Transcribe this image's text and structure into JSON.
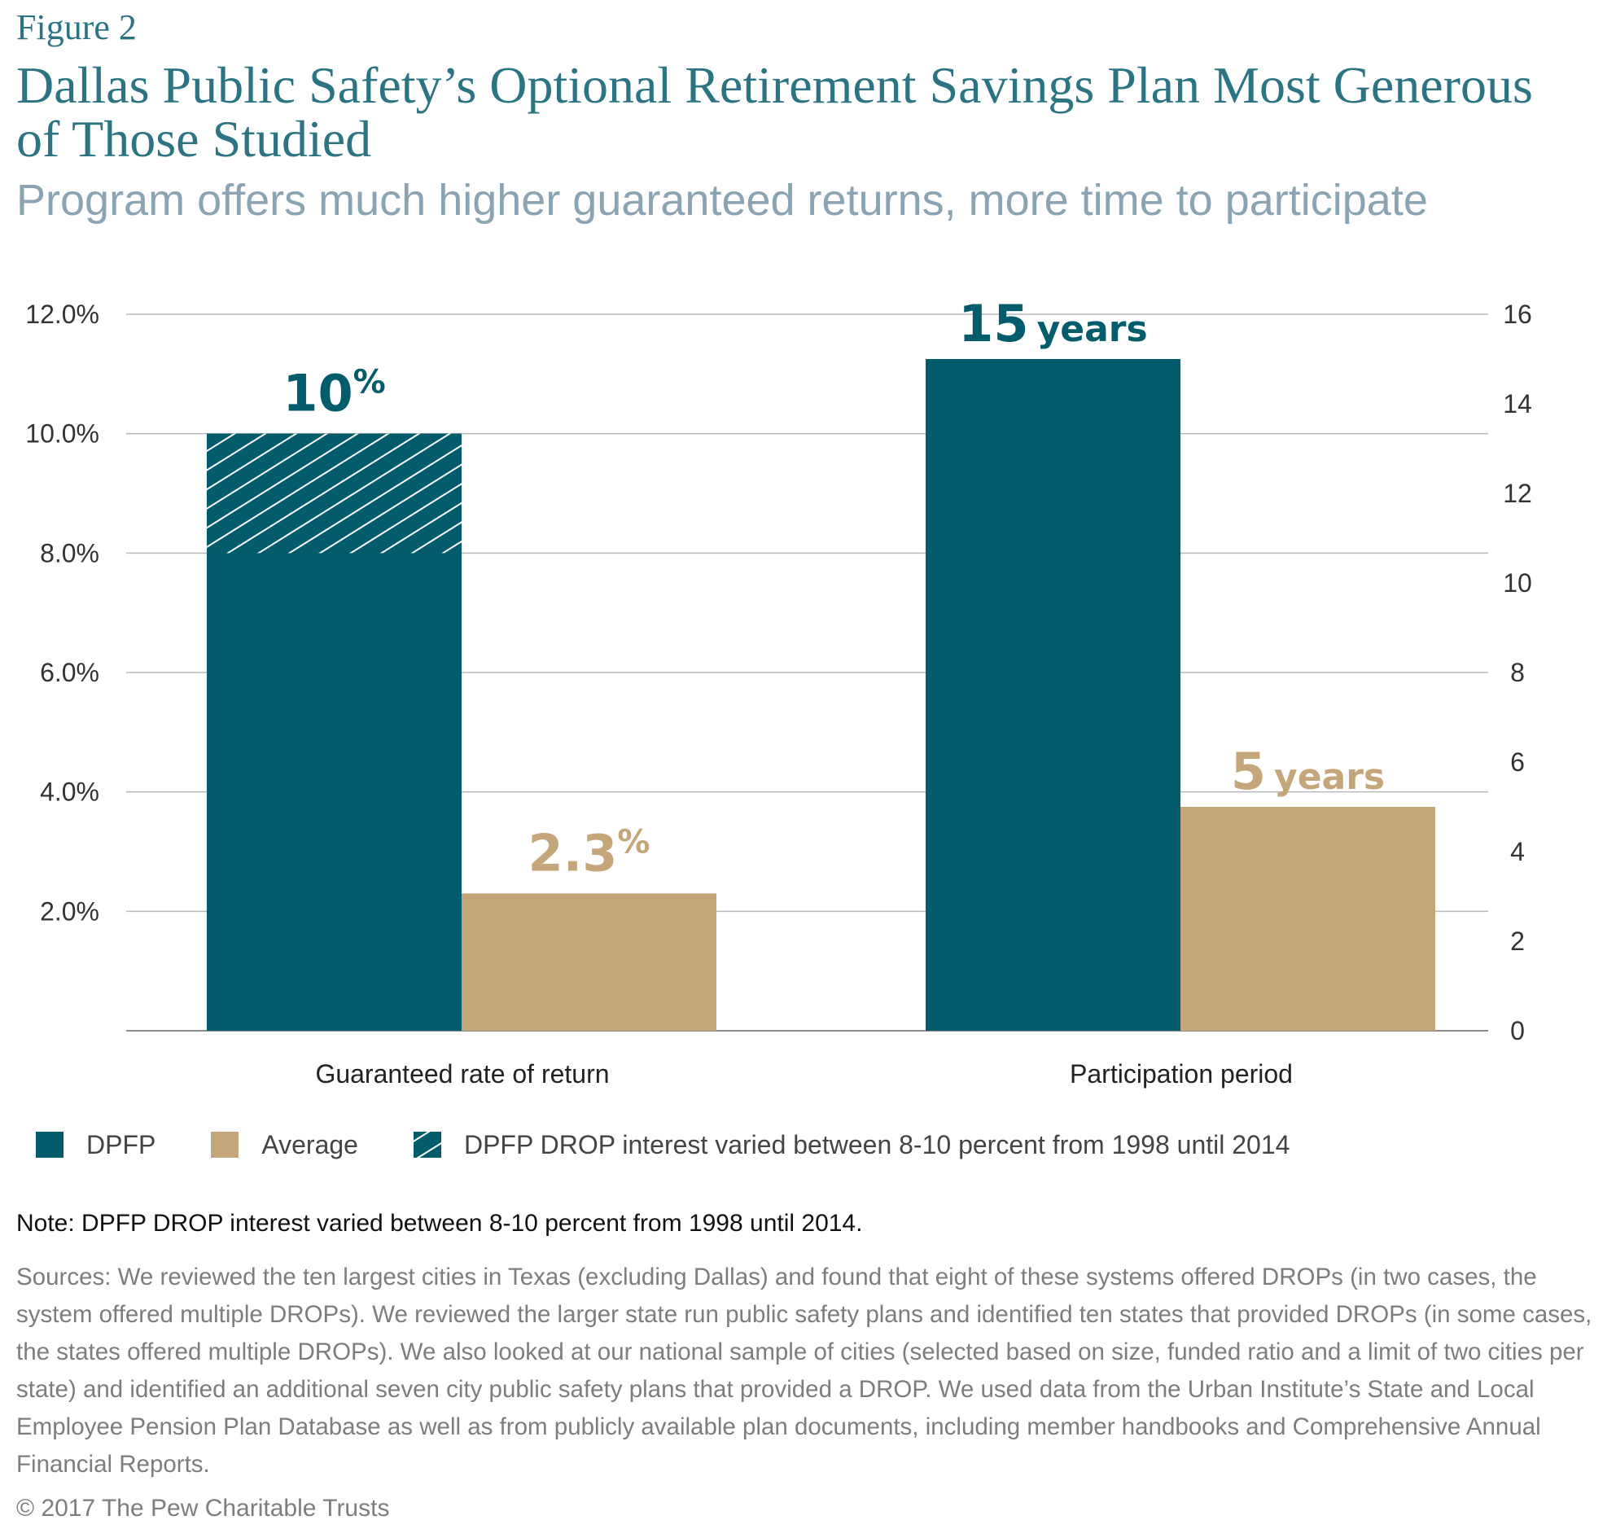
{
  "figure_label": "Figure 2",
  "title": "Dallas Public Safety’s Optional Retirement Savings Plan Most Generous of Those Studied",
  "subtitle": "Program offers much higher guaranteed returns, more time to participate",
  "colors": {
    "dpfp": "#035c6c",
    "average": "#c5a57a",
    "grid": "#b8b8b8",
    "axis": "#8c8c8c"
  },
  "chart_data": {
    "type": "bar",
    "categories": [
      "Guaranteed rate of return",
      "Participation period"
    ],
    "series": [
      {
        "name": "DPFP",
        "values": [
          10,
          15
        ],
        "color_key": "dpfp"
      },
      {
        "name": "Average",
        "values": [
          2.3,
          5
        ],
        "color_key": "average"
      }
    ],
    "hatched_range": {
      "category": "Guaranteed rate of return",
      "series": "DPFP",
      "from": 8,
      "to": 10
    },
    "y_left": {
      "ticks": [
        "2.0%",
        "4.0%",
        "6.0%",
        "8.0%",
        "10.0%",
        "12.0%"
      ],
      "tick_values": [
        2,
        4,
        6,
        8,
        10,
        12
      ],
      "ylim": [
        0,
        12
      ]
    },
    "y_right": {
      "ticks": [
        "0",
        "2",
        "4",
        "6",
        "8",
        "10",
        "12",
        "14",
        "16"
      ],
      "tick_values": [
        0,
        2,
        4,
        6,
        8,
        10,
        12,
        14,
        16
      ],
      "ylim": [
        0,
        16
      ]
    },
    "category_axis": [
      "left",
      "right"
    ],
    "grid": true,
    "data_labels": [
      {
        "number": "10",
        "suffix": "%",
        "color_key": "dpfp"
      },
      {
        "number": "2.3",
        "suffix": "%",
        "color_key": "average"
      },
      {
        "number": "15",
        "suffix": "years",
        "color_key": "dpfp"
      },
      {
        "number": "5",
        "suffix": "years",
        "color_key": "average"
      }
    ],
    "legend_position": "bottom"
  },
  "legend": [
    {
      "label": "DPFP",
      "type": "solid",
      "color_key": "dpfp"
    },
    {
      "label": "Average",
      "type": "solid",
      "color_key": "average"
    },
    {
      "label": "DPFP DROP interest varied between 8-10 percent from 1998 until 2014",
      "type": "hatched",
      "color_key": "dpfp"
    }
  ],
  "note": "Note: DPFP DROP interest varied between 8-10 percent from 1998 until 2014.",
  "sources": "Sources: We reviewed the ten largest cities in Texas (excluding Dallas) and found that eight of these systems offered DROPs (in two cases, the system offered multiple DROPs). We reviewed the larger state run public safety plans and identified ten states that provided DROPs (in some cases, the states offered multiple DROPs). We also looked at our national sample of cities (selected based on size, funded ratio and a limit of two cities per state) and identified an additional seven city public safety plans that provided a DROP. We used data from the Urban Institute’s State and Local Employee Pension Plan Database as well as from publicly available plan documents, including member handbooks and Comprehensive Annual Financial Reports.",
  "copyright": "© 2017 The Pew Charitable Trusts"
}
